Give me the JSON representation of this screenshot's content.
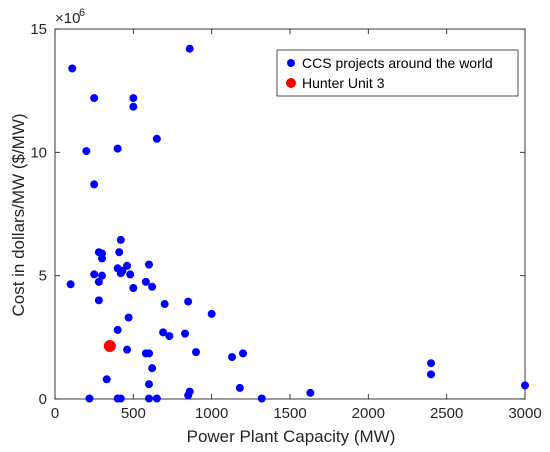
{
  "chart_data": {
    "type": "scatter",
    "title": "",
    "xlabel": "Power Plant Capacity (MW)",
    "ylabel": "Cost in dollars/MW ($/MW)",
    "xlim": [
      0,
      3000
    ],
    "ylim": [
      0,
      15
    ],
    "y_multiplier_label": "×10",
    "y_multiplier_exponent": "6",
    "x_ticks": [
      "0",
      "500",
      "1000",
      "1500",
      "2000",
      "2500",
      "3000"
    ],
    "y_ticks": [
      "0",
      "5",
      "10",
      "15"
    ],
    "grid": false,
    "legend_position": "top-right",
    "series": [
      {
        "name": "CCS projects around the world",
        "color": "#0000ff",
        "points": [
          [
            110,
            13.4
          ],
          [
            250,
            12.2
          ],
          [
            500,
            12.2
          ],
          [
            860,
            14.2
          ],
          [
            500,
            11.85
          ],
          [
            650,
            10.55
          ],
          [
            200,
            10.05
          ],
          [
            400,
            10.15
          ],
          [
            250,
            8.7
          ],
          [
            100,
            4.65
          ],
          [
            250,
            5.05
          ],
          [
            280,
            5.95
          ],
          [
            300,
            5.9
          ],
          [
            300,
            5.7
          ],
          [
            300,
            5.0
          ],
          [
            280,
            4.75
          ],
          [
            280,
            4.0
          ],
          [
            420,
            6.45
          ],
          [
            400,
            5.3
          ],
          [
            410,
            5.95
          ],
          [
            420,
            5.1
          ],
          [
            460,
            5.4
          ],
          [
            430,
            5.2
          ],
          [
            480,
            5.05
          ],
          [
            500,
            4.5
          ],
          [
            580,
            4.75
          ],
          [
            600,
            5.45
          ],
          [
            620,
            4.55
          ],
          [
            700,
            3.85
          ],
          [
            850,
            3.95
          ],
          [
            1000,
            3.45
          ],
          [
            470,
            3.3
          ],
          [
            400,
            2.8
          ],
          [
            690,
            2.7
          ],
          [
            730,
            2.55
          ],
          [
            830,
            2.65
          ],
          [
            900,
            1.9
          ],
          [
            460,
            2.0
          ],
          [
            580,
            1.85
          ],
          [
            600,
            1.85
          ],
          [
            620,
            1.25
          ],
          [
            1130,
            1.7
          ],
          [
            1200,
            1.85
          ],
          [
            330,
            0.8
          ],
          [
            600,
            0.6
          ],
          [
            860,
            0.3
          ],
          [
            850,
            0.15
          ],
          [
            1180,
            0.45
          ],
          [
            1630,
            0.25
          ],
          [
            2400,
            1.45
          ],
          [
            2400,
            1.0
          ],
          [
            3000,
            0.55
          ],
          [
            220,
            0.02
          ],
          [
            400,
            0.02
          ],
          [
            420,
            0.02
          ],
          [
            600,
            0.02
          ],
          [
            650,
            0.02
          ],
          [
            1320,
            0.02
          ]
        ]
      },
      {
        "name": "Hunter Unit 3",
        "color": "#ff0000",
        "points": [
          [
            350,
            2.15
          ]
        ]
      }
    ]
  }
}
